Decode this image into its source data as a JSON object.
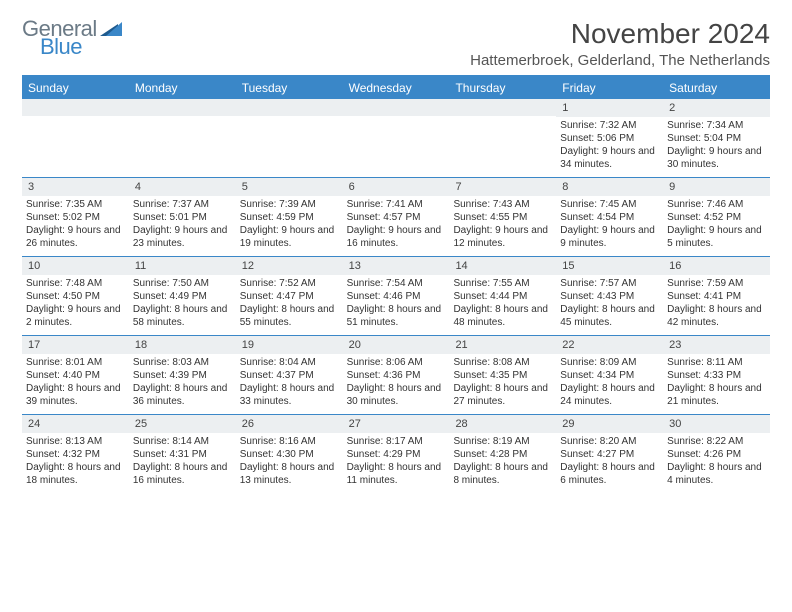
{
  "logo": {
    "text1": "General",
    "text2": "Blue"
  },
  "title": "November 2024",
  "location": "Hattemerbroek, Gelderland, The Netherlands",
  "dayNames": [
    "Sunday",
    "Monday",
    "Tuesday",
    "Wednesday",
    "Thursday",
    "Friday",
    "Saturday"
  ],
  "colors": {
    "headerBar": "#3a87c8",
    "dayNumBg": "#eceff1",
    "text": "#333333",
    "logoGray": "#6b7a86",
    "logoBlue": "#3a87c8"
  },
  "weeks": [
    [
      {
        "n": "",
        "sunrise": "",
        "sunset": "",
        "daylight": ""
      },
      {
        "n": "",
        "sunrise": "",
        "sunset": "",
        "daylight": ""
      },
      {
        "n": "",
        "sunrise": "",
        "sunset": "",
        "daylight": ""
      },
      {
        "n": "",
        "sunrise": "",
        "sunset": "",
        "daylight": ""
      },
      {
        "n": "",
        "sunrise": "",
        "sunset": "",
        "daylight": ""
      },
      {
        "n": "1",
        "sunrise": "Sunrise: 7:32 AM",
        "sunset": "Sunset: 5:06 PM",
        "daylight": "Daylight: 9 hours and 34 minutes."
      },
      {
        "n": "2",
        "sunrise": "Sunrise: 7:34 AM",
        "sunset": "Sunset: 5:04 PM",
        "daylight": "Daylight: 9 hours and 30 minutes."
      }
    ],
    [
      {
        "n": "3",
        "sunrise": "Sunrise: 7:35 AM",
        "sunset": "Sunset: 5:02 PM",
        "daylight": "Daylight: 9 hours and 26 minutes."
      },
      {
        "n": "4",
        "sunrise": "Sunrise: 7:37 AM",
        "sunset": "Sunset: 5:01 PM",
        "daylight": "Daylight: 9 hours and 23 minutes."
      },
      {
        "n": "5",
        "sunrise": "Sunrise: 7:39 AM",
        "sunset": "Sunset: 4:59 PM",
        "daylight": "Daylight: 9 hours and 19 minutes."
      },
      {
        "n": "6",
        "sunrise": "Sunrise: 7:41 AM",
        "sunset": "Sunset: 4:57 PM",
        "daylight": "Daylight: 9 hours and 16 minutes."
      },
      {
        "n": "7",
        "sunrise": "Sunrise: 7:43 AM",
        "sunset": "Sunset: 4:55 PM",
        "daylight": "Daylight: 9 hours and 12 minutes."
      },
      {
        "n": "8",
        "sunrise": "Sunrise: 7:45 AM",
        "sunset": "Sunset: 4:54 PM",
        "daylight": "Daylight: 9 hours and 9 minutes."
      },
      {
        "n": "9",
        "sunrise": "Sunrise: 7:46 AM",
        "sunset": "Sunset: 4:52 PM",
        "daylight": "Daylight: 9 hours and 5 minutes."
      }
    ],
    [
      {
        "n": "10",
        "sunrise": "Sunrise: 7:48 AM",
        "sunset": "Sunset: 4:50 PM",
        "daylight": "Daylight: 9 hours and 2 minutes."
      },
      {
        "n": "11",
        "sunrise": "Sunrise: 7:50 AM",
        "sunset": "Sunset: 4:49 PM",
        "daylight": "Daylight: 8 hours and 58 minutes."
      },
      {
        "n": "12",
        "sunrise": "Sunrise: 7:52 AM",
        "sunset": "Sunset: 4:47 PM",
        "daylight": "Daylight: 8 hours and 55 minutes."
      },
      {
        "n": "13",
        "sunrise": "Sunrise: 7:54 AM",
        "sunset": "Sunset: 4:46 PM",
        "daylight": "Daylight: 8 hours and 51 minutes."
      },
      {
        "n": "14",
        "sunrise": "Sunrise: 7:55 AM",
        "sunset": "Sunset: 4:44 PM",
        "daylight": "Daylight: 8 hours and 48 minutes."
      },
      {
        "n": "15",
        "sunrise": "Sunrise: 7:57 AM",
        "sunset": "Sunset: 4:43 PM",
        "daylight": "Daylight: 8 hours and 45 minutes."
      },
      {
        "n": "16",
        "sunrise": "Sunrise: 7:59 AM",
        "sunset": "Sunset: 4:41 PM",
        "daylight": "Daylight: 8 hours and 42 minutes."
      }
    ],
    [
      {
        "n": "17",
        "sunrise": "Sunrise: 8:01 AM",
        "sunset": "Sunset: 4:40 PM",
        "daylight": "Daylight: 8 hours and 39 minutes."
      },
      {
        "n": "18",
        "sunrise": "Sunrise: 8:03 AM",
        "sunset": "Sunset: 4:39 PM",
        "daylight": "Daylight: 8 hours and 36 minutes."
      },
      {
        "n": "19",
        "sunrise": "Sunrise: 8:04 AM",
        "sunset": "Sunset: 4:37 PM",
        "daylight": "Daylight: 8 hours and 33 minutes."
      },
      {
        "n": "20",
        "sunrise": "Sunrise: 8:06 AM",
        "sunset": "Sunset: 4:36 PM",
        "daylight": "Daylight: 8 hours and 30 minutes."
      },
      {
        "n": "21",
        "sunrise": "Sunrise: 8:08 AM",
        "sunset": "Sunset: 4:35 PM",
        "daylight": "Daylight: 8 hours and 27 minutes."
      },
      {
        "n": "22",
        "sunrise": "Sunrise: 8:09 AM",
        "sunset": "Sunset: 4:34 PM",
        "daylight": "Daylight: 8 hours and 24 minutes."
      },
      {
        "n": "23",
        "sunrise": "Sunrise: 8:11 AM",
        "sunset": "Sunset: 4:33 PM",
        "daylight": "Daylight: 8 hours and 21 minutes."
      }
    ],
    [
      {
        "n": "24",
        "sunrise": "Sunrise: 8:13 AM",
        "sunset": "Sunset: 4:32 PM",
        "daylight": "Daylight: 8 hours and 18 minutes."
      },
      {
        "n": "25",
        "sunrise": "Sunrise: 8:14 AM",
        "sunset": "Sunset: 4:31 PM",
        "daylight": "Daylight: 8 hours and 16 minutes."
      },
      {
        "n": "26",
        "sunrise": "Sunrise: 8:16 AM",
        "sunset": "Sunset: 4:30 PM",
        "daylight": "Daylight: 8 hours and 13 minutes."
      },
      {
        "n": "27",
        "sunrise": "Sunrise: 8:17 AM",
        "sunset": "Sunset: 4:29 PM",
        "daylight": "Daylight: 8 hours and 11 minutes."
      },
      {
        "n": "28",
        "sunrise": "Sunrise: 8:19 AM",
        "sunset": "Sunset: 4:28 PM",
        "daylight": "Daylight: 8 hours and 8 minutes."
      },
      {
        "n": "29",
        "sunrise": "Sunrise: 8:20 AM",
        "sunset": "Sunset: 4:27 PM",
        "daylight": "Daylight: 8 hours and 6 minutes."
      },
      {
        "n": "30",
        "sunrise": "Sunrise: 8:22 AM",
        "sunset": "Sunset: 4:26 PM",
        "daylight": "Daylight: 8 hours and 4 minutes."
      }
    ]
  ]
}
